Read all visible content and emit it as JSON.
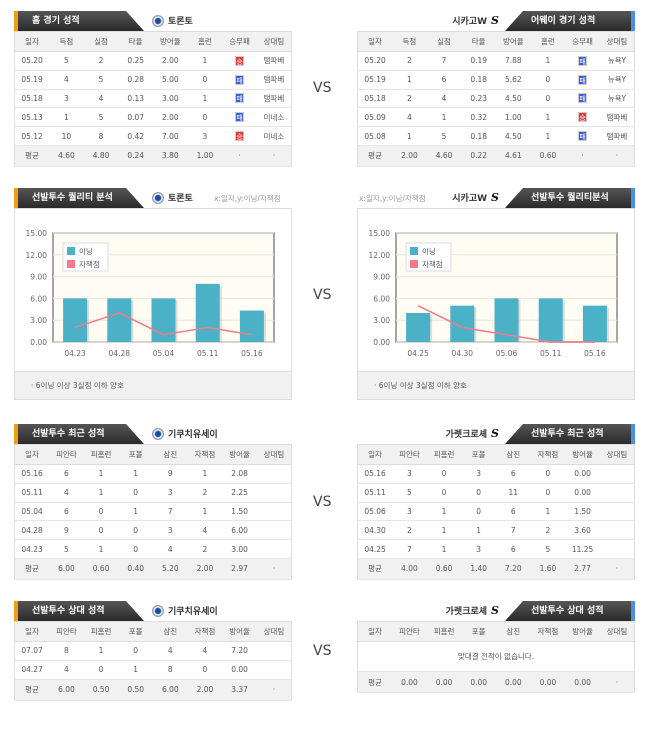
{
  "vs_label": "VS",
  "colors": {
    "bar": "#4ab1c6",
    "line": "#f47a8a",
    "win": "#e43b3b",
    "loss": "#3a5fd6"
  },
  "home_games": {
    "title": "홈 경기 성적",
    "team": "토론토",
    "columns": [
      "일자",
      "득점",
      "실점",
      "타율",
      "방어율",
      "홈런",
      "승무패",
      "상대팀"
    ],
    "rows": [
      [
        "05.20",
        "5",
        "2",
        "0.25",
        "2.00",
        "1",
        "승",
        "탬파베"
      ],
      [
        "05.19",
        "4",
        "5",
        "0.28",
        "5.00",
        "0",
        "패",
        "탬파베"
      ],
      [
        "05.18",
        "3",
        "4",
        "0.13",
        "3.00",
        "1",
        "패",
        "탬파베"
      ],
      [
        "05.13",
        "1",
        "5",
        "0.07",
        "2.00",
        "0",
        "패",
        "미네소"
      ],
      [
        "05.12",
        "10",
        "8",
        "0.42",
        "7.00",
        "3",
        "승",
        "미네소"
      ]
    ],
    "avg": [
      "평균",
      "4.60",
      "4.80",
      "0.24",
      "3.80",
      "1.00",
      "·",
      "·"
    ]
  },
  "away_games": {
    "title": "어웨이 경기 성적",
    "team": "시카고W",
    "columns": [
      "일자",
      "득점",
      "실점",
      "타율",
      "방어율",
      "홈런",
      "승무패",
      "상대팀"
    ],
    "rows": [
      [
        "05.20",
        "2",
        "7",
        "0.19",
        "7.88",
        "1",
        "패",
        "뉴욕Y"
      ],
      [
        "05.19",
        "1",
        "6",
        "0.18",
        "5.62",
        "0",
        "패",
        "뉴욕Y"
      ],
      [
        "05.18",
        "2",
        "4",
        "0.23",
        "4.50",
        "0",
        "패",
        "뉴욕Y"
      ],
      [
        "05.09",
        "4",
        "1",
        "0.32",
        "1.00",
        "1",
        "승",
        "탬파베"
      ],
      [
        "05.08",
        "1",
        "5",
        "0.18",
        "4.50",
        "1",
        "패",
        "탬파베"
      ]
    ],
    "avg": [
      "평균",
      "2.00",
      "4.60",
      "0.22",
      "4.61",
      "0.60",
      "·",
      "·"
    ]
  },
  "quality_home": {
    "title": "선발투수 퀄리티 분석",
    "team": "토론토",
    "axis_note": "x:일자,y:이닝/자책점",
    "footnote": "·  6이닝 이상 3실점 이하 양호"
  },
  "quality_away": {
    "title": "선발투수 퀄리티분석",
    "team": "시카고W",
    "axis_note": "x:일자,y:이닝/자책점",
    "footnote": "·  6이닝 이상 3실점 이하 양호"
  },
  "chart_data": [
    {
      "type": "bar",
      "categories": [
        "04.23",
        "04.28",
        "05.04",
        "05.11",
        "05.16"
      ],
      "series": [
        {
          "name": "이닝",
          "type": "bar",
          "values": [
            6,
            6,
            6,
            8,
            4.33
          ]
        },
        {
          "name": "자책점",
          "type": "line",
          "values": [
            2,
            4,
            1,
            2,
            1
          ]
        }
      ],
      "ylim": [
        0,
        15
      ],
      "yticks": [
        "0.00",
        "3.00",
        "6.00",
        "9.00",
        "12.00",
        "15.00"
      ],
      "legend": "top-left",
      "grid": true
    },
    {
      "type": "bar",
      "categories": [
        "04.25",
        "04.30",
        "05.06",
        "05.11",
        "05.16"
      ],
      "series": [
        {
          "name": "이닝",
          "type": "bar",
          "values": [
            4,
            5,
            6,
            6,
            5
          ]
        },
        {
          "name": "자책점",
          "type": "line",
          "values": [
            5,
            2,
            1,
            0,
            0
          ]
        }
      ],
      "ylim": [
        0,
        15
      ],
      "yticks": [
        "0.00",
        "3.00",
        "6.00",
        "9.00",
        "12.00",
        "15.00"
      ],
      "legend": "top-left",
      "grid": true
    }
  ],
  "recent_home": {
    "title": "선발투수 최근 성적",
    "team": "기쿠치유세이",
    "columns": [
      "일자",
      "피안타",
      "피홈런",
      "포볼",
      "삼진",
      "자책점",
      "방어율",
      "상대팀"
    ],
    "rows": [
      [
        "05.16",
        "6",
        "1",
        "1",
        "9",
        "1",
        "2.08",
        ""
      ],
      [
        "05.11",
        "4",
        "1",
        "0",
        "3",
        "2",
        "2.25",
        ""
      ],
      [
        "05.04",
        "6",
        "0",
        "1",
        "7",
        "1",
        "1.50",
        ""
      ],
      [
        "04.28",
        "9",
        "0",
        "0",
        "3",
        "4",
        "6.00",
        ""
      ],
      [
        "04.23",
        "5",
        "1",
        "0",
        "4",
        "2",
        "3.00",
        ""
      ]
    ],
    "avg": [
      "평균",
      "6.00",
      "0.60",
      "0.40",
      "5.20",
      "2.00",
      "2.97",
      "·"
    ]
  },
  "recent_away": {
    "title": "선발투수 최근 성적",
    "team": "가렛크로셰",
    "columns": [
      "일자",
      "피안타",
      "피홈런",
      "포볼",
      "삼진",
      "자책점",
      "방어율",
      "상대팀"
    ],
    "rows": [
      [
        "05.16",
        "3",
        "0",
        "3",
        "6",
        "0",
        "0.00",
        ""
      ],
      [
        "05.11",
        "5",
        "0",
        "0",
        "11",
        "0",
        "0.00",
        ""
      ],
      [
        "05.06",
        "3",
        "1",
        "0",
        "6",
        "1",
        "1.50",
        ""
      ],
      [
        "04.30",
        "2",
        "1",
        "1",
        "7",
        "2",
        "3.60",
        ""
      ],
      [
        "04.25",
        "7",
        "1",
        "3",
        "6",
        "5",
        "11.25",
        ""
      ]
    ],
    "avg": [
      "평균",
      "4.00",
      "0.60",
      "1.40",
      "7.20",
      "1.60",
      "2.77",
      "·"
    ]
  },
  "vs_home": {
    "title": "선발투수 상대 성적",
    "team": "기쿠치유세이",
    "columns": [
      "일자",
      "피안타",
      "피홈런",
      "포볼",
      "삼진",
      "자책점",
      "방어율",
      "상대팀"
    ],
    "rows": [
      [
        "07.07",
        "8",
        "1",
        "0",
        "4",
        "4",
        "7.20",
        ""
      ],
      [
        "04.27",
        "4",
        "0",
        "1",
        "8",
        "0",
        "0.00",
        ""
      ]
    ],
    "avg": [
      "평균",
      "6.00",
      "0.50",
      "0.50",
      "6.00",
      "2.00",
      "3.37",
      "·"
    ]
  },
  "vs_away": {
    "title": "선발투수 상대 성적",
    "team": "가렛크로셰",
    "columns": [
      "일자",
      "피안타",
      "피홈런",
      "포볼",
      "삼진",
      "자책점",
      "방어율",
      "상대팀"
    ],
    "rows": [],
    "empty_message": "맞대결 전적이 없습니다.",
    "avg": [
      "평균",
      "0.00",
      "0.00",
      "0.00",
      "0.00",
      "0.00",
      "0.00",
      "·"
    ]
  }
}
